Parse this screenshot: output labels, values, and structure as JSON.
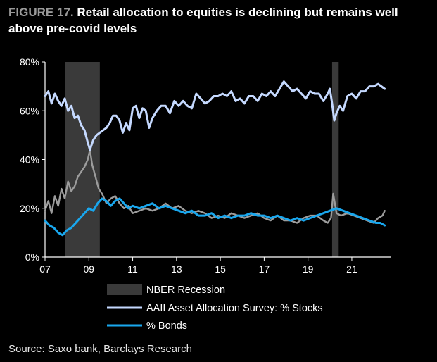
{
  "figure": {
    "label": "FIGURE 17.",
    "title": "Retail allocation to equities is declining but remains well above pre-covid levels",
    "source": "Source: Saxo bank, Barclays Research"
  },
  "chart_data": {
    "type": "line",
    "x_ticks": [
      "07",
      "09",
      "11",
      "13",
      "15",
      "17",
      "19",
      "21"
    ],
    "y_ticks": [
      "0%",
      "20%",
      "40%",
      "60%",
      "80%"
    ],
    "ylim": [
      0,
      80
    ],
    "xlim": [
      2007.0,
      2022.8
    ],
    "grid": false,
    "legend_position": "bottom",
    "recessions": [
      {
        "label": "NBER Recession",
        "start": 2007.9,
        "end": 2009.5
      },
      {
        "start": 2020.1,
        "end": 2020.4
      }
    ],
    "colors": {
      "stocks": "#c5d9ff",
      "bonds": "#19a7ee",
      "cash": "#9c9c9c",
      "recession": "#3a3a3a"
    },
    "series": [
      {
        "name": "AAII Asset Allocation Survey: % Stocks",
        "key": "stocks",
        "x": [
          2007.0,
          2007.15,
          2007.3,
          2007.45,
          2007.6,
          2007.75,
          2007.9,
          2008.05,
          2008.2,
          2008.35,
          2008.5,
          2008.65,
          2008.8,
          2008.95,
          2009.05,
          2009.2,
          2009.35,
          2009.5,
          2009.65,
          2009.8,
          2009.95,
          2010.1,
          2010.25,
          2010.4,
          2010.55,
          2010.7,
          2010.85,
          2011.0,
          2011.15,
          2011.3,
          2011.45,
          2011.6,
          2011.75,
          2011.9,
          2012.1,
          2012.3,
          2012.5,
          2012.7,
          2012.9,
          2013.1,
          2013.3,
          2013.5,
          2013.7,
          2013.9,
          2014.1,
          2014.3,
          2014.5,
          2014.7,
          2014.9,
          2015.1,
          2015.3,
          2015.5,
          2015.7,
          2015.9,
          2016.1,
          2016.3,
          2016.5,
          2016.7,
          2016.9,
          2017.1,
          2017.3,
          2017.5,
          2017.7,
          2017.9,
          2018.1,
          2018.3,
          2018.5,
          2018.7,
          2018.9,
          2019.1,
          2019.3,
          2019.5,
          2019.7,
          2019.9,
          2020.0,
          2020.1,
          2020.2,
          2020.3,
          2020.45,
          2020.6,
          2020.8,
          2021.0,
          2021.2,
          2021.4,
          2021.6,
          2021.8,
          2022.0,
          2022.2,
          2022.35,
          2022.5
        ],
        "values": [
          66,
          68,
          63,
          67,
          64,
          62,
          65,
          60,
          62,
          57,
          58,
          54,
          52,
          47,
          44,
          48,
          50,
          51,
          52,
          53,
          55,
          58,
          58,
          56,
          51,
          55,
          52,
          61,
          62,
          57,
          61,
          60,
          53,
          57,
          60,
          62,
          62,
          59,
          64,
          62,
          64,
          62,
          61,
          67,
          65,
          63,
          64,
          66,
          66,
          67,
          66,
          68,
          64,
          65,
          63,
          66,
          66,
          64,
          67,
          66,
          68,
          66,
          69,
          72,
          70,
          68,
          69,
          67,
          65,
          68,
          67,
          67,
          64,
          67,
          69,
          63,
          56,
          59,
          62,
          60,
          66,
          67,
          65,
          68,
          68,
          70,
          70,
          71,
          70,
          69
        ]
      },
      {
        "name": "% Bonds",
        "key": "bonds",
        "x": [
          2007.0,
          2007.2,
          2007.4,
          2007.6,
          2007.8,
          2008.0,
          2008.2,
          2008.4,
          2008.6,
          2008.8,
          2009.0,
          2009.2,
          2009.4,
          2009.6,
          2009.8,
          2010.0,
          2010.2,
          2010.4,
          2010.6,
          2010.8,
          2011.0,
          2011.3,
          2011.6,
          2011.9,
          2012.2,
          2012.5,
          2012.8,
          2013.1,
          2013.4,
          2013.7,
          2014.0,
          2014.3,
          2014.6,
          2014.9,
          2015.2,
          2015.5,
          2015.8,
          2016.1,
          2016.4,
          2016.7,
          2017.0,
          2017.3,
          2017.6,
          2017.9,
          2018.2,
          2018.5,
          2018.8,
          2019.1,
          2019.4,
          2019.7,
          2020.0,
          2020.3,
          2020.6,
          2020.9,
          2021.2,
          2021.5,
          2021.8,
          2022.1,
          2022.3,
          2022.5
        ],
        "values": [
          15,
          13,
          12,
          10,
          9,
          11,
          12,
          14,
          16,
          18,
          20,
          19,
          22,
          24,
          23,
          21,
          23,
          24,
          22,
          20,
          21,
          20,
          21,
          22,
          20,
          21,
          20,
          19,
          18,
          19,
          17,
          17,
          18,
          16,
          17,
          16,
          17,
          17,
          18,
          17,
          17,
          16,
          17,
          16,
          15,
          16,
          15,
          16,
          17,
          18,
          19,
          20,
          19,
          18,
          17,
          16,
          15,
          14,
          14,
          13
        ]
      },
      {
        "key": "cash",
        "x": [
          2007.0,
          2007.15,
          2007.3,
          2007.45,
          2007.6,
          2007.75,
          2007.9,
          2008.05,
          2008.2,
          2008.35,
          2008.5,
          2008.65,
          2008.8,
          2008.95,
          2009.05,
          2009.15,
          2009.3,
          2009.45,
          2009.6,
          2009.8,
          2010.0,
          2010.2,
          2010.4,
          2010.6,
          2010.8,
          2011.0,
          2011.3,
          2011.6,
          2011.9,
          2012.2,
          2012.5,
          2012.8,
          2013.1,
          2013.4,
          2013.7,
          2014.0,
          2014.3,
          2014.6,
          2014.9,
          2015.2,
          2015.5,
          2015.8,
          2016.1,
          2016.4,
          2016.7,
          2017.0,
          2017.3,
          2017.6,
          2017.9,
          2018.2,
          2018.5,
          2018.8,
          2019.1,
          2019.4,
          2019.7,
          2019.9,
          2020.05,
          2020.15,
          2020.3,
          2020.5,
          2020.8,
          2021.1,
          2021.4,
          2021.7,
          2022.0,
          2022.2,
          2022.4,
          2022.5
        ],
        "values": [
          19,
          23,
          18,
          25,
          21,
          28,
          24,
          31,
          27,
          29,
          33,
          35,
          37,
          40,
          44,
          38,
          33,
          28,
          26,
          22,
          24,
          25,
          22,
          20,
          21,
          18,
          19,
          20,
          19,
          20,
          22,
          20,
          21,
          19,
          18,
          19,
          18,
          16,
          17,
          16,
          18,
          17,
          16,
          17,
          18,
          16,
          15,
          17,
          15,
          15,
          14,
          16,
          17,
          17,
          15,
          14,
          16,
          26,
          18,
          17,
          18,
          17,
          16,
          15,
          14,
          16,
          17,
          19
        ]
      }
    ]
  }
}
